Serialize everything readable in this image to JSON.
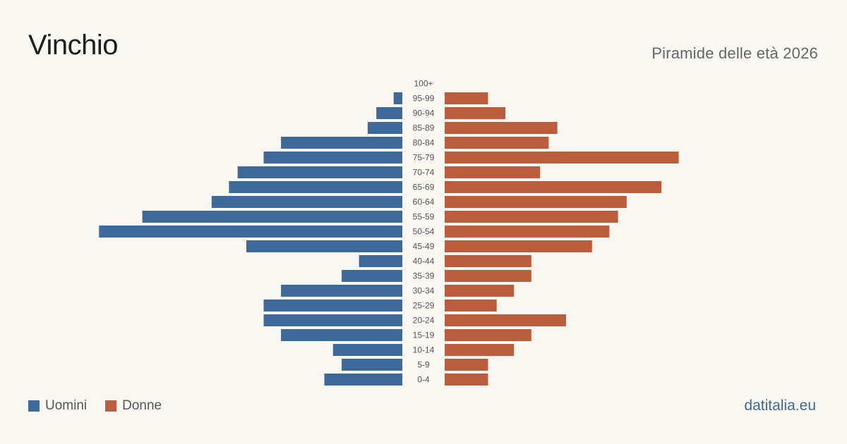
{
  "header": {
    "title": "Vinchio",
    "subtitle": "Piramide delle età 2026"
  },
  "legend": {
    "men_label": "Uomini",
    "women_label": "Donne"
  },
  "source": "datitalia.eu",
  "colors": {
    "men": "#3d6a9a",
    "women": "#b95d3e",
    "background": "#f9f7f2",
    "label": "#555555"
  },
  "chart_data": {
    "type": "bar",
    "orientation": "horizontal-pyramid",
    "categories": [
      "100+",
      "95-99",
      "90-94",
      "85-89",
      "80-84",
      "75-79",
      "70-74",
      "65-69",
      "60-64",
      "55-59",
      "50-54",
      "45-49",
      "40-44",
      "35-39",
      "30-34",
      "25-29",
      "20-24",
      "15-19",
      "10-14",
      "5-9",
      "0-4"
    ],
    "series": [
      {
        "name": "Uomini",
        "values": [
          0,
          1,
          3,
          4,
          14,
          16,
          19,
          20,
          22,
          30,
          35,
          18,
          5,
          7,
          14,
          16,
          16,
          14,
          8,
          7,
          9
        ]
      },
      {
        "name": "Donne",
        "values": [
          0,
          5,
          7,
          13,
          12,
          27,
          11,
          25,
          21,
          20,
          19,
          17,
          10,
          10,
          8,
          6,
          14,
          10,
          8,
          5,
          5
        ]
      }
    ],
    "legend_position": "bottom-left",
    "grid": false
  }
}
